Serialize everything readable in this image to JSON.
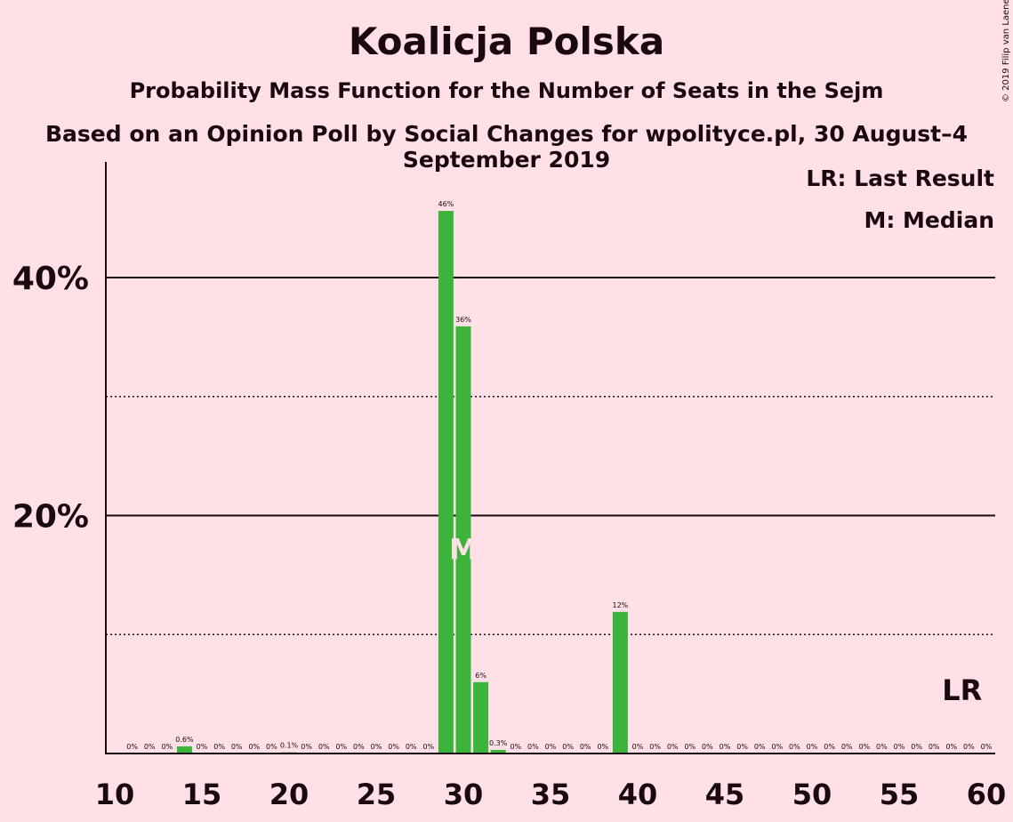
{
  "title": "Koalicja Polska",
  "subtitle": "Probability Mass Function for the Number of Seats in the Sejm",
  "source": "Based on an Opinion Poll by Social Changes for wpolityce.pl, 30 August–4 September 2019",
  "copyright": "© 2019 Filip van Laenen",
  "legend": {
    "last_result": "LR: Last Result",
    "median": "M: Median"
  },
  "markers": {
    "median_label": "M",
    "median_seat": 30,
    "last_result_label": "LR",
    "last_result_seat": 58
  },
  "colors": {
    "background": "#FFE0E6",
    "bar": "#3CB43C",
    "text": "#1a0a0f",
    "median_marker": "#FFE0E6"
  },
  "chart_data": {
    "type": "bar",
    "xlabel": "",
    "ylabel": "",
    "xlim": [
      10,
      60
    ],
    "ylim": [
      0,
      50
    ],
    "x_ticks": [
      10,
      15,
      20,
      25,
      30,
      35,
      40,
      45,
      50,
      55,
      60
    ],
    "y_ticks_major": [
      {
        "value": 20,
        "label": "20%"
      },
      {
        "value": 40,
        "label": "40%"
      }
    ],
    "y_ticks_minor": [
      10,
      30
    ],
    "categories": [
      11,
      12,
      13,
      14,
      15,
      16,
      17,
      18,
      19,
      20,
      21,
      22,
      23,
      24,
      25,
      26,
      27,
      28,
      29,
      30,
      31,
      32,
      33,
      34,
      35,
      36,
      37,
      38,
      39,
      40,
      41,
      42,
      43,
      44,
      45,
      46,
      47,
      48,
      49,
      50,
      51,
      52,
      53,
      54,
      55,
      56,
      57,
      58,
      59,
      60
    ],
    "values": [
      0,
      0,
      0,
      0.6,
      0,
      0,
      0,
      0,
      0,
      0.1,
      0,
      0,
      0,
      0,
      0,
      0,
      0,
      0,
      45.6,
      35.9,
      6,
      0.3,
      0,
      0,
      0,
      0,
      0,
      0,
      11.9,
      0,
      0,
      0,
      0,
      0,
      0,
      0,
      0,
      0,
      0,
      0,
      0,
      0,
      0,
      0,
      0,
      0,
      0,
      0,
      0,
      0
    ],
    "value_labels": [
      "0%",
      "0%",
      "0%",
      "0.6%",
      "0%",
      "0%",
      "0%",
      "0%",
      "0%",
      "0.1%",
      "0%",
      "0%",
      "0%",
      "0%",
      "0%",
      "0%",
      "0%",
      "0%",
      "46%",
      "36%",
      "6%",
      "0.3%",
      "0%",
      "0%",
      "0%",
      "0%",
      "0%",
      "0%",
      "12%",
      "0%",
      "0%",
      "0%",
      "0%",
      "0%",
      "0%",
      "0%",
      "0%",
      "0%",
      "0%",
      "0%",
      "0%",
      "0%",
      "0%",
      "0%",
      "0%",
      "0%",
      "0%",
      "0%",
      "0%",
      "0%"
    ],
    "grid": true,
    "legend_position": "top-right"
  }
}
